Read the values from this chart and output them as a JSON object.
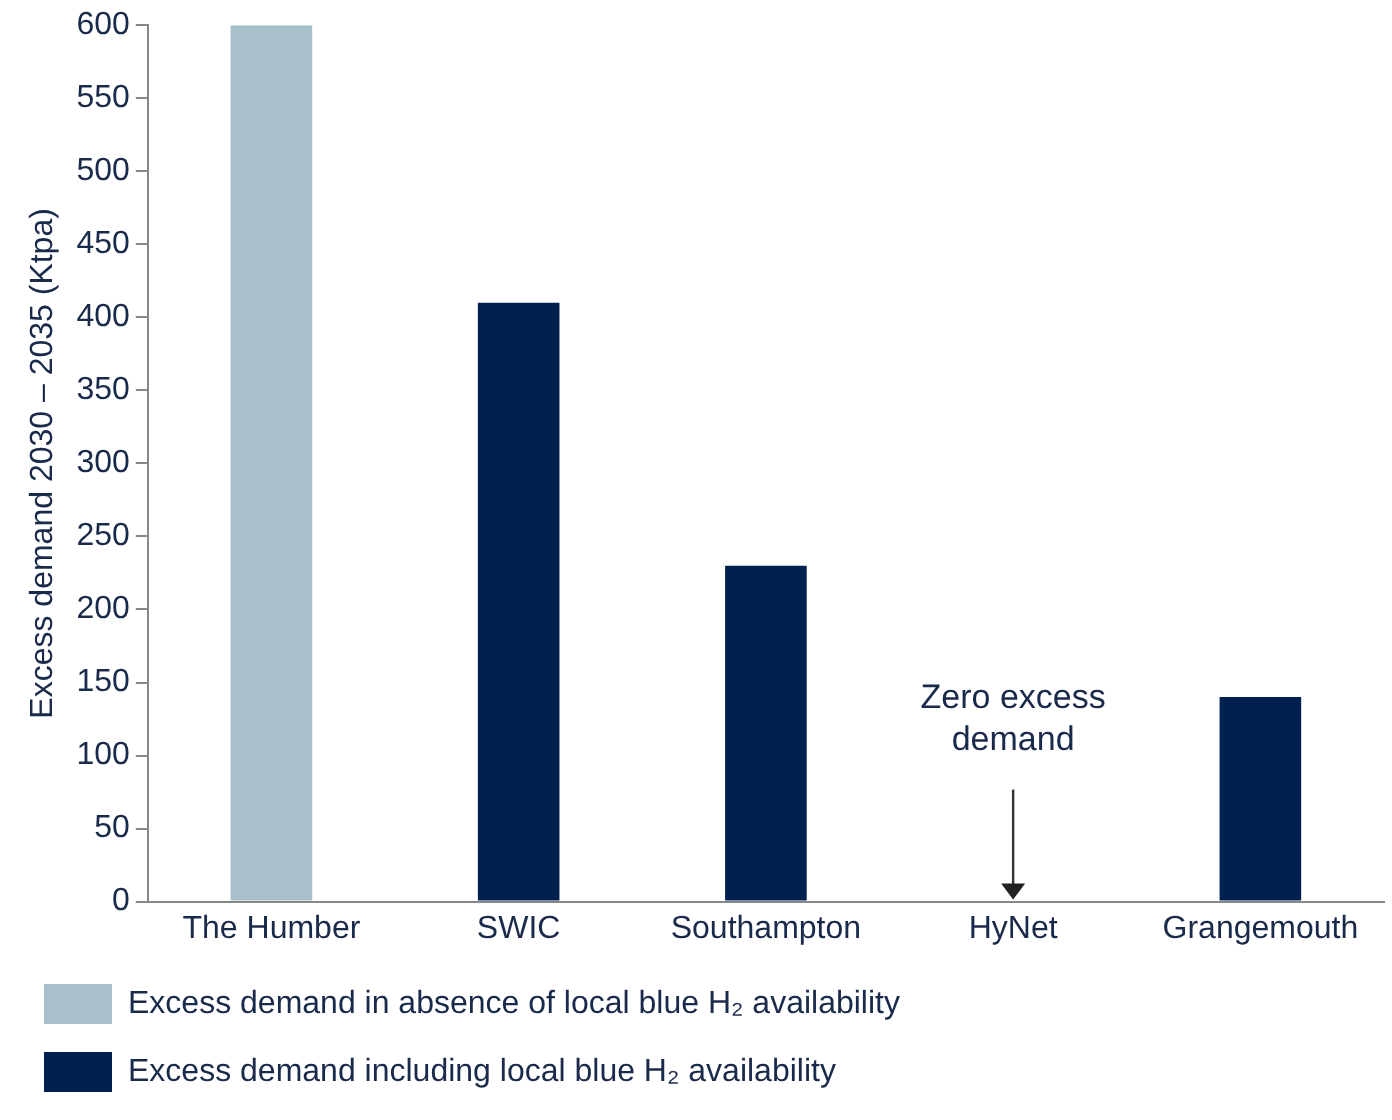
{
  "chart_data": {
    "type": "bar",
    "ylabel": "Excess demand 2030 – 2035 (Ktpa)",
    "categories": [
      "The Humber",
      "SWIC",
      "Southampton",
      "HyNet",
      "Grangemouth"
    ],
    "series": [
      {
        "name": "Excess demand in absence of local blue H₂ availability",
        "color": "#a7c0cc",
        "values": [
          600,
          null,
          null,
          null,
          null
        ]
      },
      {
        "name": "Excess demand including local blue H₂ availability",
        "color": "#002050",
        "values": [
          null,
          410,
          230,
          0,
          140
        ]
      }
    ],
    "ylim": [
      0,
      600
    ],
    "yticks": [
      0,
      50,
      100,
      150,
      200,
      250,
      300,
      350,
      400,
      450,
      500,
      550,
      600
    ],
    "grid": false,
    "legend": "bottom",
    "annotations": [
      {
        "text": "Zero excess demand",
        "x": "HyNet",
        "y": 0
      }
    ]
  }
}
